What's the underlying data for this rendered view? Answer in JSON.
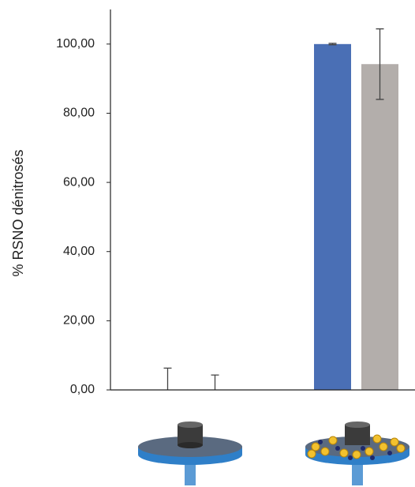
{
  "chart_data": {
    "type": "bar",
    "y_label": "% RSNO dénitrosés",
    "categories": [
      null,
      null
    ],
    "series": [
      {
        "color": "#4a6fb5",
        "values": [
          0,
          100
        ],
        "errors": [
          6.3,
          0.2
        ]
      },
      {
        "color": "#b3aeab",
        "values": [
          0,
          94.2
        ],
        "errors": [
          4.3,
          10.2
        ]
      }
    ],
    "ylim": [
      0,
      110
    ],
    "yticks": [
      {
        "value": 0,
        "label": "0,00"
      },
      {
        "value": 20,
        "label": "20,00"
      },
      {
        "value": 40,
        "label": "40,00"
      },
      {
        "value": 60,
        "label": "60,00"
      },
      {
        "value": 80,
        "label": "80,00"
      },
      {
        "value": 100,
        "label": "100,00"
      }
    ]
  }
}
